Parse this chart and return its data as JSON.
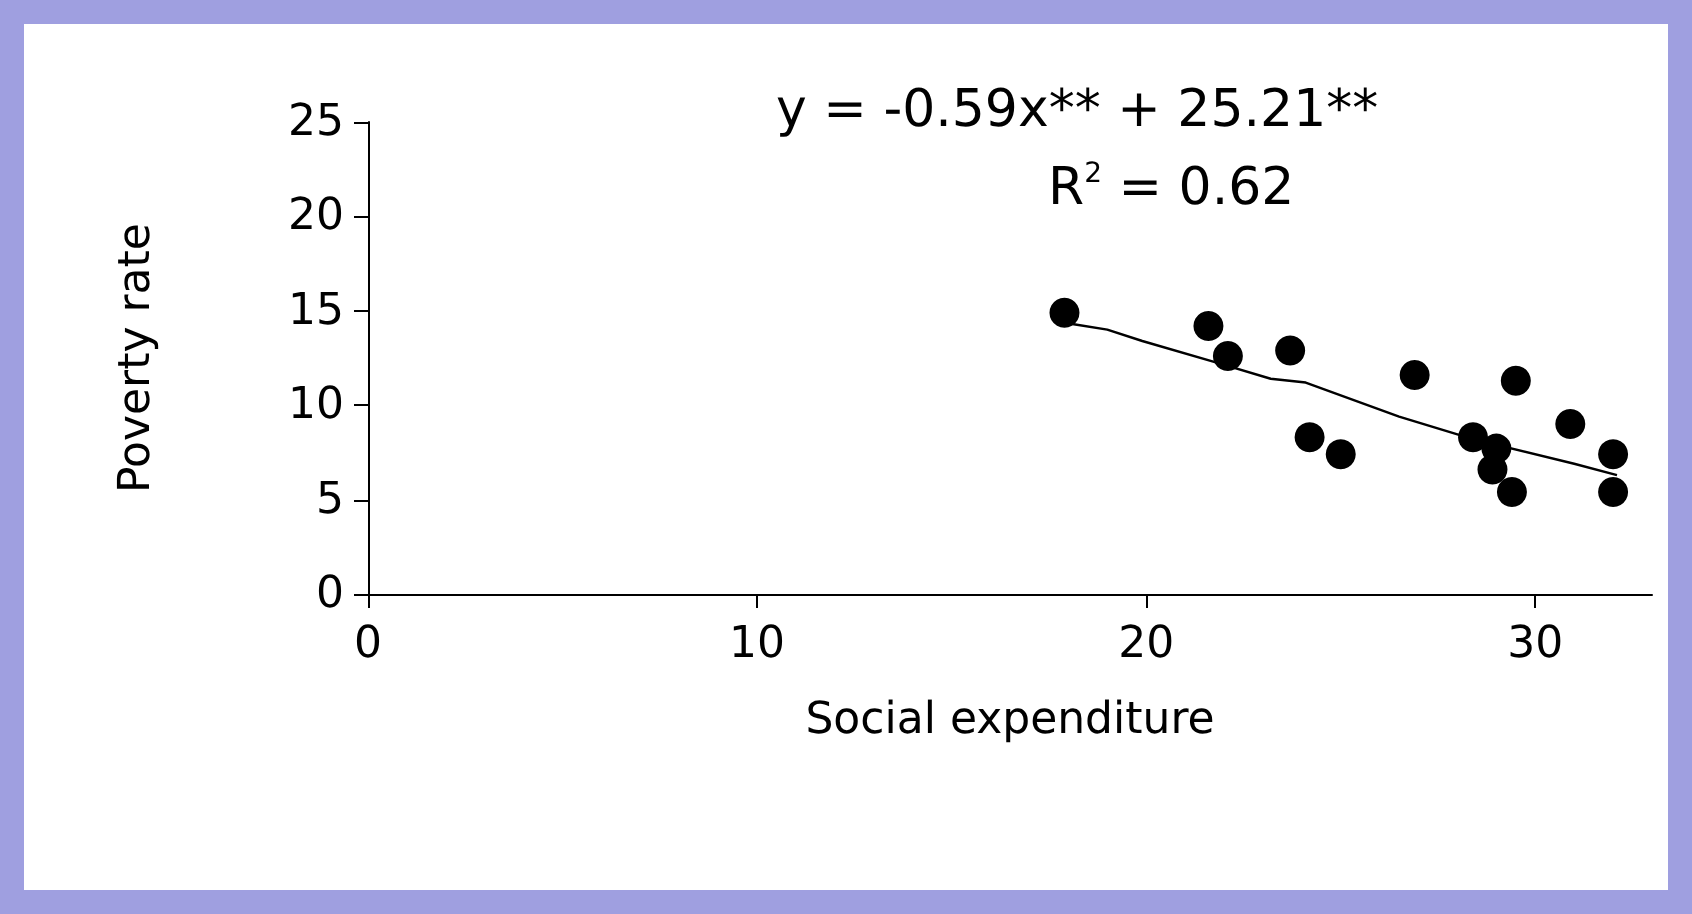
{
  "chart_data": {
    "type": "scatter",
    "xlabel": "Social expenditure",
    "ylabel": "Poverty rate",
    "xlim": [
      0,
      33
    ],
    "xticks": [
      0,
      10,
      20,
      30
    ],
    "ylim": [
      0,
      25
    ],
    "yticks": [
      0,
      5,
      10,
      15,
      20,
      25
    ],
    "grid": false,
    "marker": "circle",
    "series": [
      {
        "type": "scatter",
        "color": "#000000",
        "x": [
          17.9,
          21.6,
          22.1,
          23.7,
          24.2,
          25.0,
          26.9,
          28.4,
          29.0,
          28.9,
          29.4,
          29.5,
          30.9,
          32.0,
          32.0
        ],
        "values": [
          14.9,
          14.2,
          12.6,
          12.9,
          8.3,
          7.4,
          11.6,
          8.3,
          7.7,
          6.6,
          5.4,
          11.3,
          9.0,
          7.4,
          5.4
        ]
      },
      {
        "type": "line",
        "color": "#000000",
        "marker": "none",
        "x": [
          18.1,
          19.0,
          19.9,
          21.9,
          23.2,
          24.1,
          26.5,
          28.4,
          31.0,
          32.1
        ],
        "values": [
          14.3,
          14.0,
          13.4,
          12.2,
          11.4,
          11.2,
          9.4,
          8.2,
          6.9,
          6.3
        ]
      }
    ],
    "annotations": [
      "y = -0.59x** + 25.21**",
      "R$^{2}$ = 0.62"
    ]
  }
}
